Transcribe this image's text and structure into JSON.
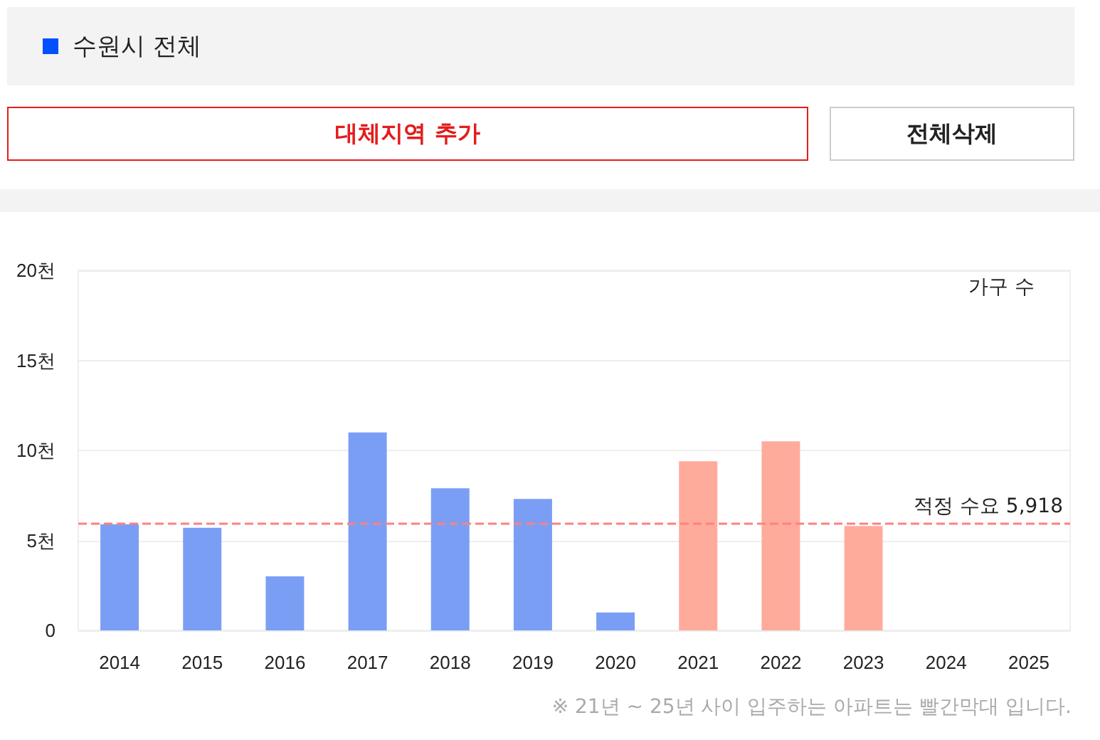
{
  "chart_data": {
    "type": "bar",
    "ylabel": "가구 수",
    "categories": [
      "2014",
      "2015",
      "2016",
      "2017",
      "2018",
      "2019",
      "2020",
      "2021",
      "2022",
      "2023",
      "2024",
      "2025"
    ],
    "values": [
      5.9,
      5.7,
      3.0,
      11.0,
      7.9,
      7.3,
      1.0,
      9.4,
      10.5,
      5.8,
      null,
      null
    ],
    "colors": [
      "#7b9ef5",
      "#7b9ef5",
      "#7b9ef5",
      "#7b9ef5",
      "#7b9ef5",
      "#7b9ef5",
      "#7b9ef5",
      "#ffab9c",
      "#ffab9c",
      "#ffab9c",
      "#ffab9c",
      "#ffab9c"
    ],
    "ylim": [
      0,
      20
    ],
    "yticks": [
      0,
      {
        "value": 5,
        "label": "5천"
      },
      {
        "value": 10,
        "label": "10천"
      },
      {
        "value": 15,
        "label": "15천"
      },
      {
        "value": 20,
        "label": "20천"
      }
    ],
    "ref_lines": [
      {
        "axis": "y",
        "value": 5.918,
        "label": "적정 수요 5,918",
        "color": "#ff8080",
        "line_style": "dashed"
      }
    ],
    "annotations": [
      "수원시 전체",
      "대체지역 추가",
      "전체삭제",
      "※ 21년 ~ 25년 사이 입주하는 아파트는 빨간막대 입니다."
    ],
    "grid": "y"
  }
}
